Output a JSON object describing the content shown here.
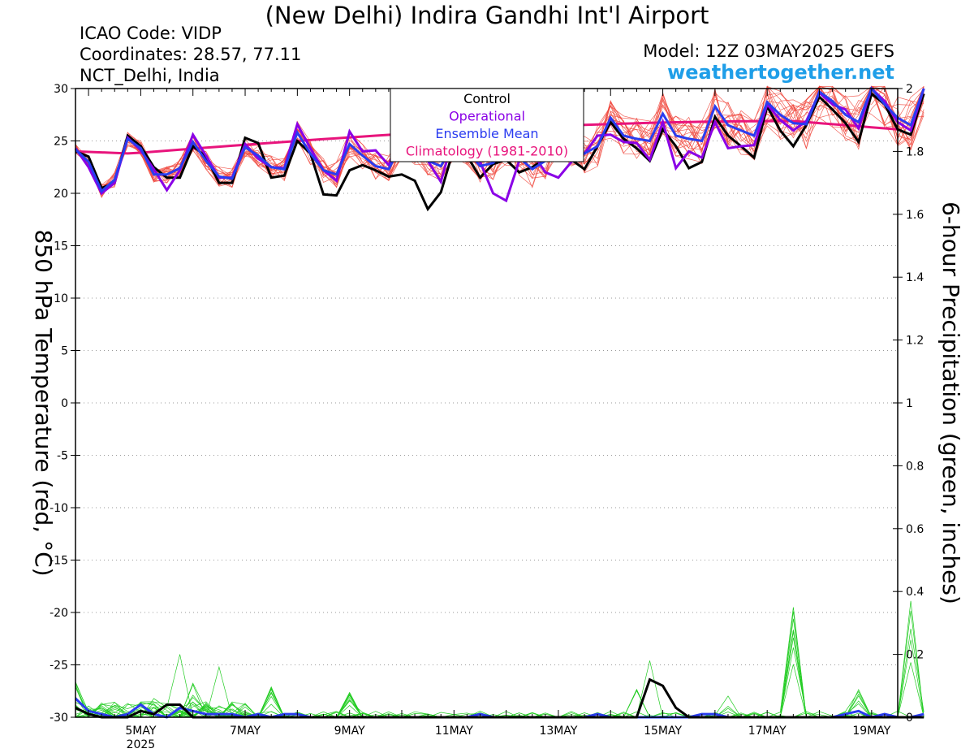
{
  "header": {
    "title": "(New Delhi) Indira Gandhi Int'l Airport",
    "icao": "ICAO Code: VIDP",
    "coordinates": "Coordinates: 28.57, 77.11",
    "region": "NCT_Delhi, India",
    "model": "Model: 12Z 03MAY2025 GEFS",
    "site": "weathertogether.net"
  },
  "colors": {
    "control": "#000000",
    "operational": "#8a00e6",
    "ensemble_mean": "#2a3cf0",
    "climatology": "#e8147c",
    "members_temp": "#f0463c",
    "members_precip": "#22cc22"
  },
  "chart_data": {
    "type": "line",
    "ylabel": "850 hPa Temperature (red, °C)",
    "y2label": "6-hour Precipitation (green, inches)",
    "ylim": [
      -30,
      30
    ],
    "y2lim": [
      0,
      2
    ],
    "yticks": [
      30,
      25,
      20,
      15,
      10,
      5,
      0,
      -5,
      -10,
      -15,
      -20,
      -25,
      -30
    ],
    "y2ticks": [
      2,
      1.8,
      1.6,
      1.4,
      1.2,
      1,
      0.8,
      0.6,
      0.4,
      0.2,
      0
    ],
    "grid": true,
    "legend": {
      "position": "top-center",
      "entries": [
        "Control",
        "Operational",
        "Ensemble Mean",
        "Climatology (1981-2010)"
      ]
    },
    "xrange_days": [
      3.75,
      19.5
    ],
    "xticks": [
      {
        "day": 5,
        "label": "5MAY",
        "sublabel": "2025"
      },
      {
        "day": 7,
        "label": "7MAY"
      },
      {
        "day": 9,
        "label": "9MAY"
      },
      {
        "day": 11,
        "label": "11MAY"
      },
      {
        "day": 13,
        "label": "13MAY"
      },
      {
        "day": 15,
        "label": "15MAY"
      },
      {
        "day": 17,
        "label": "17MAY"
      },
      {
        "day": 19,
        "label": "19MAY"
      }
    ],
    "temperature": {
      "x_day_start": 3.75,
      "x_step_hours": 6,
      "control": [
        24,
        23.5,
        20.5,
        21,
        25.5,
        24.5,
        22.5,
        21.5,
        21.5,
        24.5,
        23.5,
        21,
        21,
        25.3,
        24.8,
        21.5,
        21.7,
        25,
        23.8,
        19.9,
        19.8,
        22.2,
        22.7,
        22.2,
        21.6,
        21.8,
        21.2,
        18.5,
        20.1,
        24.3,
        23.6,
        21.5,
        22.8,
        23.2,
        22,
        22.5,
        23.3,
        25,
        23.2,
        22.3,
        24.5,
        26.8,
        25.2,
        24.3,
        23.1,
        26.1,
        24.5,
        22.4,
        23,
        27.3,
        25.5,
        24.5,
        23.4,
        28.3,
        26,
        24.5,
        26.5,
        29.2,
        28,
        26.7,
        24.9,
        29.5,
        28.5,
        26.1,
        25.6,
        29.5
      ],
      "operational": [
        24.3,
        22.5,
        20,
        21,
        25.3,
        24.1,
        22.3,
        20.3,
        22.2,
        25.6,
        23.6,
        21.5,
        21.5,
        24.7,
        23.3,
        22.5,
        22.4,
        26.6,
        24.3,
        22.2,
        21.2,
        25.9,
        24,
        24.1,
        22.7,
        25.6,
        25.4,
        23.1,
        21.1,
        25.6,
        25.4,
        23,
        20,
        19.3,
        23.1,
        23.9,
        22,
        21.5,
        23,
        23.8,
        25.5,
        25.6,
        24.9,
        24.8,
        23.2,
        26.8,
        22.4,
        24,
        23.4,
        26.8,
        24.3,
        24.5,
        24.6,
        28.5,
        27,
        26,
        26.9,
        29.6,
        28.5,
        28,
        26.2,
        30,
        28.8,
        26.8,
        26,
        30
      ]
    },
    "mean": {
      "x_day_start": 3.75,
      "x_step_hours": 6,
      "values": [
        24.2,
        23,
        20.2,
        21.3,
        25.2,
        24.3,
        21.8,
        21.8,
        22.4,
        24.9,
        23.1,
        21.6,
        21.4,
        24.4,
        23.6,
        22.5,
        22.3,
        25.8,
        23.8,
        22.2,
        21.8,
        24.7,
        23.6,
        22.6,
        22.3,
        24.8,
        24.2,
        23.1,
        22.6,
        24.8,
        24.1,
        22.6,
        22.9,
        24.1,
        23.4,
        22.3,
        23.1,
        25.5,
        24.3,
        23.8,
        24.5,
        27.2,
        25.5,
        25.2,
        25,
        27.6,
        25.5,
        25.2,
        25,
        28.3,
        26.5,
        26,
        25.5,
        28.7,
        27.5,
        26.7,
        26.6,
        29.7,
        28.8,
        27.5,
        26.8,
        30,
        28.5,
        27.2,
        26.5,
        30
      ]
    },
    "climatology": {
      "start": 24.0,
      "min": 23.8,
      "min_day": 4.8,
      "end": 26.1,
      "peak": 26.9,
      "peak_day": 17.5
    },
    "precipitation": {
      "x_day_start": 3.75,
      "x_step_hours": 6,
      "control": [
        0.03,
        0.01,
        0,
        0,
        0,
        0.02,
        0.01,
        0.04,
        0.04,
        0,
        0,
        0,
        0,
        0,
        0,
        0,
        0,
        0,
        0,
        0,
        0,
        0,
        0,
        0,
        0,
        0,
        0,
        0,
        0,
        0,
        0,
        0,
        0,
        0,
        0,
        0,
        0,
        0,
        0,
        0,
        0,
        0,
        0,
        0,
        0.12,
        0.1,
        0.03,
        0,
        0,
        0,
        0,
        0,
        0,
        0,
        0,
        0,
        0,
        0,
        0,
        0,
        0,
        0,
        0,
        0,
        0,
        0
      ],
      "mean": [
        0.06,
        0.02,
        0.01,
        0,
        0.01,
        0.04,
        0.01,
        0,
        0.03,
        0.02,
        0.01,
        0.01,
        0.01,
        0,
        0.01,
        0,
        0.01,
        0.01,
        0,
        0,
        0,
        0,
        0,
        0,
        0,
        0,
        0,
        0,
        0,
        0,
        0,
        0.01,
        0,
        0,
        0,
        0,
        0,
        0,
        0,
        0,
        0.01,
        0,
        0,
        0,
        0,
        0,
        0,
        0,
        0.01,
        0.01,
        0,
        0,
        0,
        0,
        0,
        0,
        0,
        0,
        0,
        0.01,
        0.02,
        0,
        0.01,
        0,
        0,
        0.01
      ]
    }
  }
}
